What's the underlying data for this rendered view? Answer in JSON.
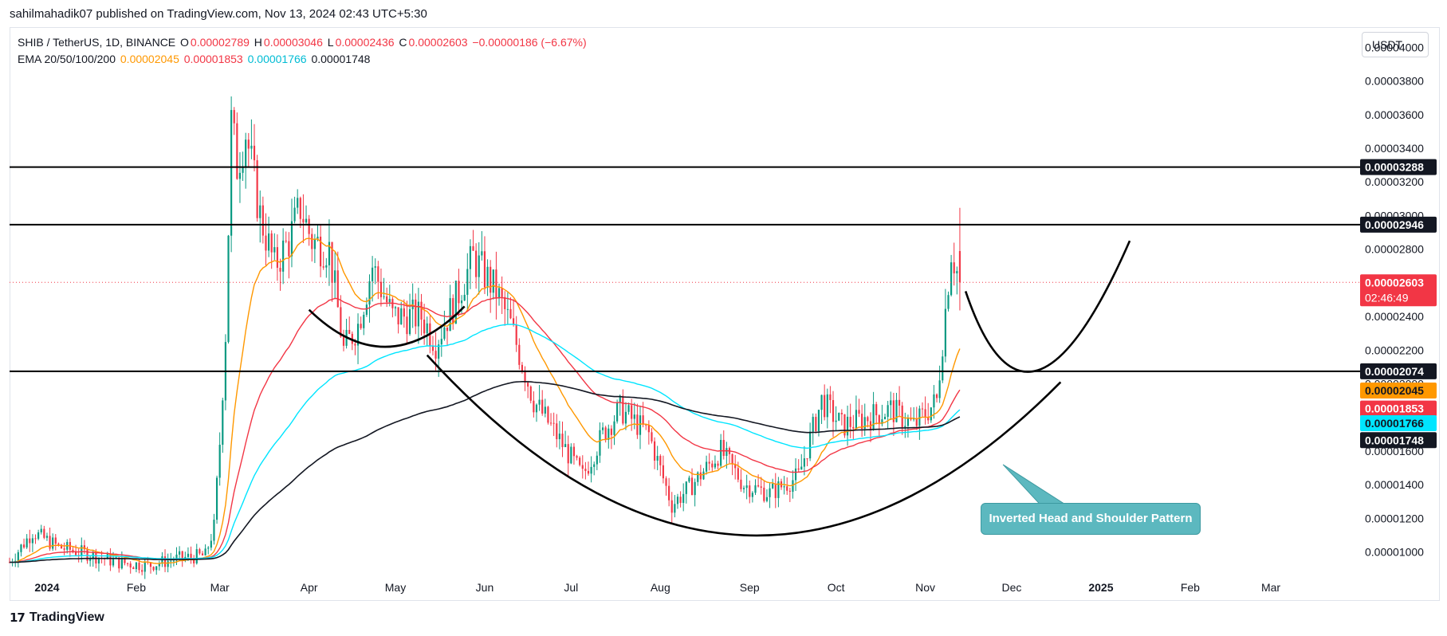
{
  "publisher": "sahilmahadik07 published on TradingView.com, Nov 13, 2024 02:43 UTC+5:30",
  "legend": {
    "symbol": "SHIB / TetherUS, 1D, BINANCE",
    "o_label": "O",
    "o_value": "0.00002789",
    "h_label": "H",
    "h_value": "0.00003046",
    "l_label": "L",
    "l_value": "0.00002436",
    "c_label": "C",
    "c_value": "0.00002603",
    "change": "−0.00000186 (−6.67%)",
    "ema_label": "EMA 20/50/100/200",
    "ema20": "0.00002045",
    "ema50": "0.00001853",
    "ema100": "0.00001766",
    "ema200": "0.00001748"
  },
  "currency_button": "USDT",
  "brand": "TradingView",
  "annotation": "Inverted Head and Shoulder Pattern",
  "colors": {
    "up": "#089981",
    "down": "#f23645",
    "ema20": "#ff9800",
    "ema50": "#f23645",
    "ema100": "#00e5ff",
    "ema200": "#131722",
    "annotation": "#5cb8bf"
  },
  "chart_data": {
    "type": "candlestick",
    "title": "SHIB / TetherUS, 1D, BINANCE",
    "ylim": [
      8.8e-06,
      4.12e-05
    ],
    "y_ticks": [
      "0.00001000",
      "0.00001200",
      "0.00001400",
      "0.00001600",
      "0.00001800",
      "0.00002000",
      "0.00002200",
      "0.00002400",
      "0.00002600",
      "0.00002800",
      "0.00003000",
      "0.00003200",
      "0.00003400",
      "0.00003600",
      "0.00003800",
      "0.00004000"
    ],
    "x_ticks": [
      {
        "label": "2024",
        "date": "2024-01-01",
        "bold": true
      },
      {
        "label": "Feb",
        "date": "2024-02-01"
      },
      {
        "label": "Mar",
        "date": "2024-03-01"
      },
      {
        "label": "Apr",
        "date": "2024-04-01"
      },
      {
        "label": "May",
        "date": "2024-05-01"
      },
      {
        "label": "Jun",
        "date": "2024-06-01"
      },
      {
        "label": "Jul",
        "date": "2024-07-01"
      },
      {
        "label": "Aug",
        "date": "2024-08-01"
      },
      {
        "label": "Sep",
        "date": "2024-09-01"
      },
      {
        "label": "Oct",
        "date": "2024-10-01"
      },
      {
        "label": "Nov",
        "date": "2024-11-01"
      },
      {
        "label": "Dec",
        "date": "2024-12-01"
      },
      {
        "label": "2025",
        "date": "2025-01-01",
        "bold": true
      },
      {
        "label": "Feb",
        "date": "2025-02-01"
      },
      {
        "label": "Mar",
        "date": "2025-03-01"
      }
    ],
    "date_range": [
      "2023-12-19",
      "2025-04-01"
    ],
    "price_path": [
      [
        "2023-12-19",
        9.4e-06
      ],
      [
        "2023-12-27",
        1.12e-05
      ],
      [
        "2024-01-05",
        1.03e-05
      ],
      [
        "2024-01-15",
        9.9e-06
      ],
      [
        "2024-01-25",
        9.4e-06
      ],
      [
        "2024-02-05",
        9.2e-06
      ],
      [
        "2024-02-15",
        9.6e-06
      ],
      [
        "2024-02-25",
        9.8e-06
      ],
      [
        "2024-02-28",
        1.15e-05
      ],
      [
        "2024-03-01",
        1.65e-05
      ],
      [
        "2024-03-03",
        2.3e-05
      ],
      [
        "2024-03-05",
        3.55e-05
      ],
      [
        "2024-03-07",
        3.3e-05
      ],
      [
        "2024-03-10",
        3.5e-05
      ],
      [
        "2024-03-15",
        3e-05
      ],
      [
        "2024-03-20",
        2.7e-05
      ],
      [
        "2024-03-25",
        2.85e-05
      ],
      [
        "2024-03-29",
        3.05e-05
      ],
      [
        "2024-04-02",
        2.85e-05
      ],
      [
        "2024-04-08",
        2.8e-05
      ],
      [
        "2024-04-13",
        2.2e-05
      ],
      [
        "2024-04-18",
        2.35e-05
      ],
      [
        "2024-04-23",
        2.7e-05
      ],
      [
        "2024-04-30",
        2.4e-05
      ],
      [
        "2024-05-10",
        2.4e-05
      ],
      [
        "2024-05-15",
        2.25e-05
      ],
      [
        "2024-05-22",
        2.5e-05
      ],
      [
        "2024-05-28",
        2.75e-05
      ],
      [
        "2024-06-05",
        2.55e-05
      ],
      [
        "2024-06-10",
        2.35e-05
      ],
      [
        "2024-06-18",
        1.9e-05
      ],
      [
        "2024-06-25",
        1.72e-05
      ],
      [
        "2024-07-05",
        1.45e-05
      ],
      [
        "2024-07-12",
        1.7e-05
      ],
      [
        "2024-07-18",
        1.85e-05
      ],
      [
        "2024-07-28",
        1.7e-05
      ],
      [
        "2024-08-05",
        1.28e-05
      ],
      [
        "2024-08-12",
        1.4e-05
      ],
      [
        "2024-08-22",
        1.6e-05
      ],
      [
        "2024-08-30",
        1.4e-05
      ],
      [
        "2024-09-08",
        1.35e-05
      ],
      [
        "2024-09-18",
        1.45e-05
      ],
      [
        "2024-09-26",
        1.9e-05
      ],
      [
        "2024-10-03",
        1.75e-05
      ],
      [
        "2024-10-12",
        1.8e-05
      ],
      [
        "2024-10-20",
        1.85e-05
      ],
      [
        "2024-10-28",
        1.75e-05
      ],
      [
        "2024-11-05",
        1.9e-05
      ],
      [
        "2024-11-10",
        2.8e-05
      ],
      [
        "2024-11-13",
        2.6e-05
      ]
    ],
    "ema": [
      {
        "name": "EMA 20",
        "period": 20,
        "color": "#ff9800"
      },
      {
        "name": "EMA 50",
        "period": 50,
        "color": "#f23645"
      },
      {
        "name": "EMA 100",
        "period": 100,
        "color": "#00e5ff"
      },
      {
        "name": "EMA 200",
        "period": 200,
        "color": "#131722"
      }
    ],
    "horizontal_levels": [
      3.288e-05,
      2.946e-05,
      2.074e-05
    ],
    "current_price": 2.603e-05,
    "price_tags": [
      {
        "value": 3.288e-05,
        "label": "0.00003288",
        "bg": "#131722",
        "fg": "#ffffff"
      },
      {
        "value": 2.946e-05,
        "label": "0.00002946",
        "bg": "#131722",
        "fg": "#ffffff"
      },
      {
        "value": 2.603e-05,
        "label": "0.00002603",
        "sub": "02:46:49",
        "bg": "#f23645",
        "fg": "#ffffff"
      },
      {
        "value": 2.074e-05,
        "label": "0.00002074",
        "bg": "#131722",
        "fg": "#ffffff"
      },
      {
        "value": 1.96e-05,
        "label": "0.00002045",
        "bg": "#ff9800",
        "fg": "#131722"
      },
      {
        "value": 1.853e-05,
        "label": "0.00001853",
        "bg": "#f23645",
        "fg": "#ffffff"
      },
      {
        "value": 1.766e-05,
        "label": "0.00001766",
        "bg": "#00e5ff",
        "fg": "#131722"
      },
      {
        "value": 1.665e-05,
        "label": "0.00001748",
        "bg": "#131722",
        "fg": "#ffffff"
      }
    ],
    "pattern_curves": [
      {
        "name": "left-shoulder",
        "points": [
          [
            "2024-04-01",
            2.44e-05
          ],
          [
            "2024-04-28",
            2.22e-05
          ],
          [
            "2024-05-25",
            2.46e-05
          ]
        ]
      },
      {
        "name": "head",
        "points": [
          [
            "2024-05-12",
            2.17e-05
          ],
          [
            "2024-08-30",
            1.1e-05
          ],
          [
            "2024-12-18",
            2.01e-05
          ]
        ]
      },
      {
        "name": "right-shoulder-projection",
        "points": [
          [
            "2024-11-15",
            2.55e-05
          ],
          [
            "2024-12-10",
            2.08e-05
          ],
          [
            "2025-01-11",
            2.85e-05
          ]
        ]
      }
    ],
    "callout_arrow": {
      "from": [
        "2024-12-22",
        1.19e-05
      ],
      "to": [
        "2024-11-28",
        1.52e-05
      ]
    }
  }
}
